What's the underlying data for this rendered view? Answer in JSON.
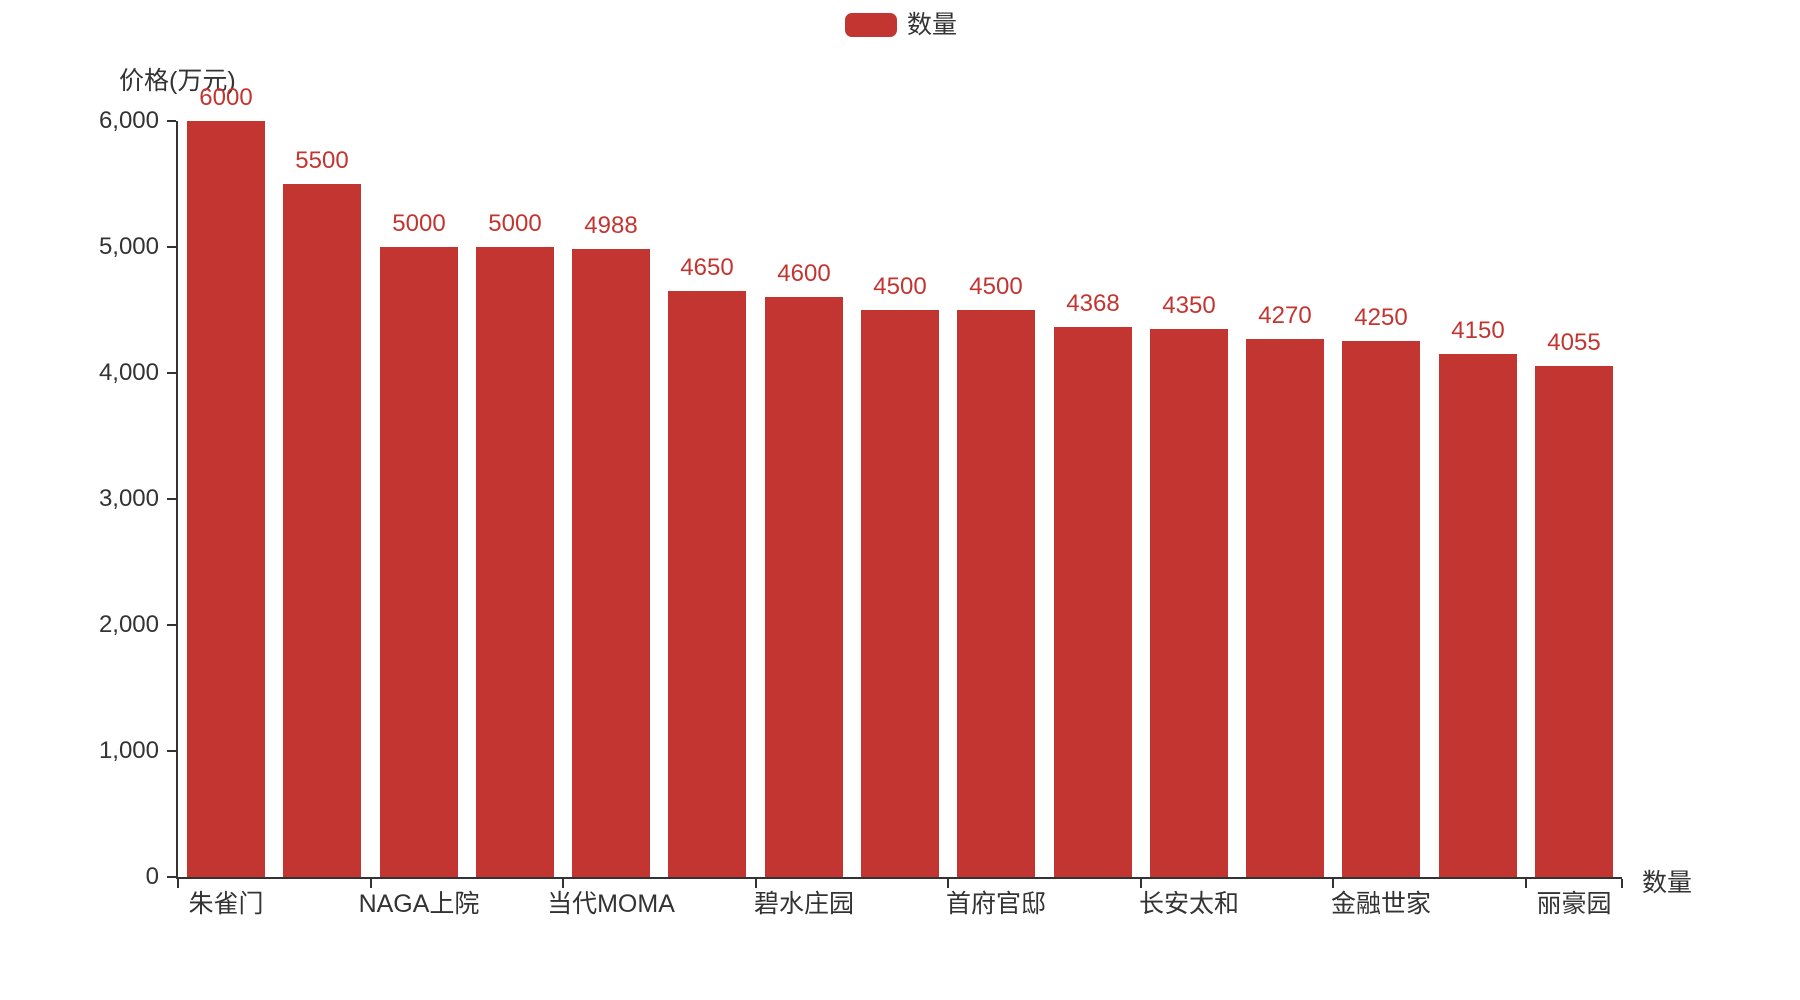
{
  "legend": {
    "label": "数量",
    "marker_color": "#c23531"
  },
  "axis": {
    "y_name": "价格(万元)",
    "x_name": "数量",
    "y_tick_labels": [
      "0",
      "1,000",
      "2,000",
      "3,000",
      "4,000",
      "5,000",
      "6,000"
    ]
  },
  "chart_data": {
    "type": "bar",
    "title": "",
    "series_name": "数量",
    "ylabel": "价格(万元)",
    "xlabel": "数量",
    "ylim": [
      0,
      6000
    ],
    "y_tick_interval": 1000,
    "grid_lines": false,
    "legend_position": "top-center",
    "bar_color": "#c23531",
    "value_label_color": "#c23531",
    "values": [
      6000,
      5500,
      5000,
      5000,
      4988,
      4650,
      4600,
      4500,
      4500,
      4368,
      4350,
      4270,
      4250,
      4150,
      4055
    ],
    "bar_value_labels": [
      "6000",
      "5500",
      "5000",
      "5000",
      "4988",
      "4650",
      "4600",
      "4500",
      "4500",
      "4368",
      "4350",
      "4270",
      "4250",
      "4150",
      "4055"
    ],
    "x_tick_labels": [
      {
        "index": 0,
        "label": "朱雀门"
      },
      {
        "index": 2,
        "label": "NAGA上院"
      },
      {
        "index": 4,
        "label": "当代MOMA"
      },
      {
        "index": 6,
        "label": "碧水庄园"
      },
      {
        "index": 8,
        "label": "首府官邸"
      },
      {
        "index": 10,
        "label": "长安太和"
      },
      {
        "index": 12,
        "label": "金融世家"
      },
      {
        "index": 14,
        "label": "丽豪园"
      }
    ]
  }
}
